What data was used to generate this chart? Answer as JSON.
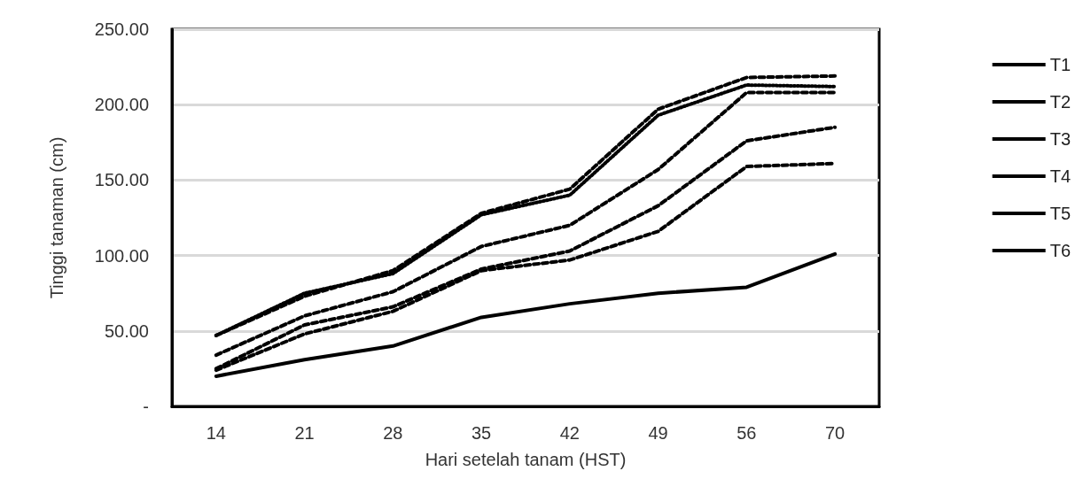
{
  "chart_data": {
    "type": "line",
    "xlabel": "Hari setelah tanam (HST)",
    "ylabel": "Tinggi tanaman (cm)",
    "categories": [
      "14",
      "21",
      "28",
      "35",
      "42",
      "49",
      "56",
      "70"
    ],
    "ylim": [
      0,
      250
    ],
    "yticks": [
      {
        "value": 0,
        "label": "-"
      },
      {
        "value": 50,
        "label": "50.00"
      },
      {
        "value": 100,
        "label": "100.00"
      },
      {
        "value": 150,
        "label": "150.00"
      },
      {
        "value": 200,
        "label": "200.00"
      },
      {
        "value": 250,
        "label": "250.00"
      }
    ],
    "grid": "y",
    "legend": "right",
    "marker": "none",
    "series": [
      {
        "name": "T1",
        "color": "#000000",
        "line_style": "solid",
        "values": [
          20,
          31,
          40,
          59,
          68,
          75,
          79,
          101
        ]
      },
      {
        "name": "T2",
        "color": "#000000",
        "line_style": "dashed",
        "values": [
          24,
          48,
          63,
          90,
          97,
          116,
          159,
          161
        ]
      },
      {
        "name": "T3",
        "color": "#000000",
        "line_style": "dashed",
        "values": [
          34,
          60,
          76,
          106,
          120,
          157,
          208,
          208
        ]
      },
      {
        "name": "T4",
        "color": "#000000",
        "line_style": "dashed",
        "values": [
          25,
          54,
          66,
          91,
          103,
          133,
          176,
          185
        ]
      },
      {
        "name": "T5",
        "color": "#000000",
        "line_style": "dashed",
        "values": [
          47,
          73,
          90,
          128,
          144,
          197,
          218,
          219
        ]
      },
      {
        "name": "T6",
        "color": "#000000",
        "line_style": "dotted",
        "values": [
          47,
          75,
          88,
          127,
          140,
          193,
          213,
          212
        ]
      }
    ]
  }
}
